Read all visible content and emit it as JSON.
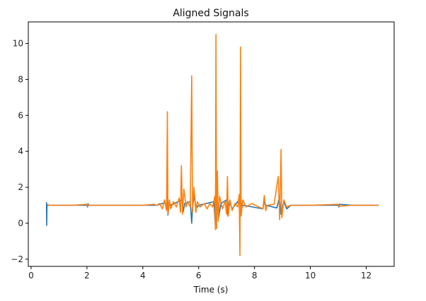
{
  "chart_data": {
    "type": "line",
    "title": "Aligned Signals",
    "xlabel": "Time (s)",
    "ylabel": "",
    "xlim": [
      -0.1,
      13.0
    ],
    "ylim": [
      -2.4,
      11.2
    ],
    "xticks": [
      0,
      2,
      4,
      6,
      8,
      10,
      12
    ],
    "yticks": [
      -2,
      0,
      2,
      4,
      6,
      8,
      10
    ],
    "grid": false,
    "legend": "none",
    "series": [
      {
        "color": "#1f77b4",
        "points": [
          [
            0.55,
            1.0
          ],
          [
            0.55,
            1.15
          ],
          [
            0.56,
            -0.12
          ],
          [
            0.57,
            1.0
          ],
          [
            2.0,
            1.0
          ],
          [
            2.02,
            0.9
          ],
          [
            2.04,
            1.08
          ],
          [
            2.06,
            1.0
          ],
          [
            4.5,
            1.0
          ],
          [
            4.8,
            1.15
          ],
          [
            4.85,
            0.8
          ],
          [
            4.88,
            1.75
          ],
          [
            4.9,
            0.45
          ],
          [
            4.95,
            1.2
          ],
          [
            5.0,
            1.0
          ],
          [
            5.4,
            1.3
          ],
          [
            5.45,
            0.65
          ],
          [
            5.5,
            1.1
          ],
          [
            5.7,
            1.2
          ],
          [
            5.75,
            0.0
          ],
          [
            5.78,
            0.9
          ],
          [
            5.85,
            1.6
          ],
          [
            5.9,
            0.8
          ],
          [
            6.0,
            1.0
          ],
          [
            6.55,
            1.2
          ],
          [
            6.6,
            -0.2
          ],
          [
            6.65,
            2.8
          ],
          [
            6.7,
            0.2
          ],
          [
            6.8,
            1.1
          ],
          [
            7.0,
            1.3
          ],
          [
            7.05,
            0.4
          ],
          [
            7.1,
            1.2
          ],
          [
            7.2,
            0.8
          ],
          [
            7.3,
            1.0
          ],
          [
            7.5,
            1.4
          ],
          [
            7.55,
            0.9
          ],
          [
            7.6,
            1.0
          ],
          [
            8.3,
            0.8
          ],
          [
            8.35,
            1.25
          ],
          [
            8.4,
            1.0
          ],
          [
            8.8,
            0.85
          ],
          [
            8.9,
            1.5
          ],
          [
            8.95,
            0.5
          ],
          [
            9.05,
            1.2
          ],
          [
            9.15,
            0.8
          ],
          [
            9.3,
            1.0
          ],
          [
            11.0,
            1.0
          ],
          [
            11.02,
            0.9
          ],
          [
            11.04,
            1.05
          ],
          [
            11.5,
            1.0
          ],
          [
            12.45,
            1.0
          ]
        ]
      },
      {
        "color": "#ff7f0e",
        "points": [
          [
            0.6,
            1.0
          ],
          [
            0.6,
            1.05
          ],
          [
            0.62,
            1.0
          ],
          [
            1.5,
            1.0
          ],
          [
            2.0,
            1.05
          ],
          [
            2.02,
            0.95
          ],
          [
            2.05,
            1.0
          ],
          [
            3.5,
            1.0
          ],
          [
            4.0,
            1.0
          ],
          [
            4.4,
            1.05
          ],
          [
            4.5,
            1.0
          ],
          [
            4.6,
            1.1
          ],
          [
            4.7,
            0.8
          ],
          [
            4.78,
            1.3
          ],
          [
            4.85,
            0.7
          ],
          [
            4.88,
            6.2
          ],
          [
            4.9,
            0.5
          ],
          [
            4.95,
            1.3
          ],
          [
            5.0,
            0.8
          ],
          [
            5.1,
            1.2
          ],
          [
            5.2,
            0.9
          ],
          [
            5.3,
            1.4
          ],
          [
            5.35,
            0.6
          ],
          [
            5.38,
            3.2
          ],
          [
            5.42,
            0.5
          ],
          [
            5.47,
            1.9
          ],
          [
            5.55,
            0.9
          ],
          [
            5.6,
            1.2
          ],
          [
            5.7,
            0.9
          ],
          [
            5.75,
            8.2
          ],
          [
            5.78,
            0.6
          ],
          [
            5.83,
            2.0
          ],
          [
            5.9,
            0.6
          ],
          [
            5.95,
            1.2
          ],
          [
            6.05,
            0.9
          ],
          [
            6.2,
            1.1
          ],
          [
            6.3,
            0.8
          ],
          [
            6.4,
            1.1
          ],
          [
            6.5,
            0.9
          ],
          [
            6.58,
            1.5
          ],
          [
            6.6,
            -0.35
          ],
          [
            6.62,
            10.5
          ],
          [
            6.64,
            -0.3
          ],
          [
            6.67,
            2.9
          ],
          [
            6.7,
            0.1
          ],
          [
            6.75,
            1.5
          ],
          [
            6.85,
            0.8
          ],
          [
            6.95,
            1.2
          ],
          [
            7.0,
            0.5
          ],
          [
            7.03,
            2.6
          ],
          [
            7.06,
            0.4
          ],
          [
            7.12,
            1.3
          ],
          [
            7.2,
            0.7
          ],
          [
            7.3,
            1.1
          ],
          [
            7.4,
            0.9
          ],
          [
            7.45,
            1.6
          ],
          [
            7.48,
            -1.8
          ],
          [
            7.5,
            9.8
          ],
          [
            7.52,
            0.4
          ],
          [
            7.58,
            1.3
          ],
          [
            7.7,
            0.9
          ],
          [
            7.9,
            1.1
          ],
          [
            8.1,
            0.95
          ],
          [
            8.3,
            0.8
          ],
          [
            8.35,
            1.55
          ],
          [
            8.4,
            0.7
          ],
          [
            8.45,
            1.0
          ],
          [
            8.7,
            1.05
          ],
          [
            8.85,
            2.6
          ],
          [
            8.9,
            0.2
          ],
          [
            8.95,
            4.1
          ],
          [
            8.98,
            0.3
          ],
          [
            9.05,
            1.3
          ],
          [
            9.15,
            0.9
          ],
          [
            9.3,
            1.0
          ],
          [
            10.0,
            1.0
          ],
          [
            11.0,
            1.05
          ],
          [
            11.02,
            0.95
          ],
          [
            11.5,
            1.0
          ],
          [
            12.45,
            1.0
          ]
        ]
      }
    ]
  }
}
